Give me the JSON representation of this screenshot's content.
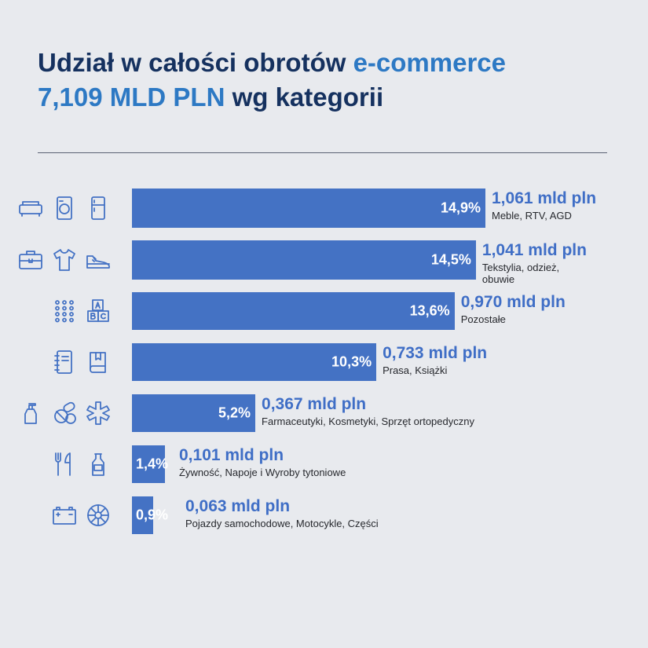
{
  "header": {
    "title_part1": "Udział w całości obrotów ",
    "title_part2": "e-commerce",
    "subtitle_part1": "7,109 MLD PLN",
    "subtitle_part2": " wg kategorii"
  },
  "colors": {
    "bar": "#4472c4",
    "title": "#15315f",
    "accent": "#2d79c4",
    "value": "#3f6ec6"
  },
  "chart_data": {
    "type": "bar",
    "orientation": "horizontal",
    "title": "Udział w całości obrotów e-commerce 7,109 MLD PLN wg kategorii",
    "unit": "mld pln",
    "categories": [
      "Meble, RTV, AGD",
      "Tekstylia, odzież, obuwie",
      "Pozostałe",
      "Prasa, Książki",
      "Farmaceutyki, Kosmetyki, Sprzęt ortopedyczny",
      "Żywność, Napoje i Wyroby tytoniowe",
      "Pojazdy samochodowe, Motocykle, Części"
    ],
    "values": [
      1.061,
      1.041,
      0.97,
      0.733,
      0.367,
      0.101,
      0.063
    ],
    "percent": [
      14.9,
      14.5,
      13.6,
      10.3,
      5.2,
      1.4,
      0.9
    ],
    "rows": [
      {
        "pct": "14,9%",
        "value": "1,061 mld pln",
        "cat_lines": [
          "Meble, RTV, AGD"
        ],
        "icons": [
          "sofa-icon",
          "washing-machine-icon",
          "fridge-icon"
        ]
      },
      {
        "pct": "14,5%",
        "value": "1,041 mld pln",
        "cat_lines": [
          "Tekstylia, odzież,",
          "obuwie"
        ],
        "icons": [
          "suitcase-icon",
          "tshirt-icon",
          "sneaker-icon"
        ]
      },
      {
        "pct": "13,6%",
        "value": "0,970 mld pln",
        "cat_lines": [
          "Pozostałe"
        ],
        "icons": [
          "dots-grid-icon",
          "abc-blocks-icon"
        ]
      },
      {
        "pct": "10,3%",
        "value": "0,733 mld pln",
        "cat_lines": [
          "Prasa, Książki"
        ],
        "icons": [
          "notebook-icon",
          "book-icon"
        ]
      },
      {
        "pct": "5,2%",
        "value": "0,367 mld pln",
        "cat_lines": [
          "Farmaceutyki, Kosmetyki, Sprzęt ortopedyczny"
        ],
        "icons": [
          "soap-bottle-icon",
          "pills-icon",
          "medical-star-icon"
        ]
      },
      {
        "pct": "1,4%",
        "value": "0,101 mld pln",
        "cat_lines": [
          "Żywność, Napoje i Wyroby tytoniowe"
        ],
        "icons": [
          "cutlery-icon",
          "bottle-icon"
        ]
      },
      {
        "pct": "0,9%",
        "value": "0,063 mld pln",
        "cat_lines": [
          "Pojazdy samochodowe, Motocykle, Części"
        ],
        "icons": [
          "car-battery-icon",
          "wheel-icon"
        ]
      }
    ]
  }
}
